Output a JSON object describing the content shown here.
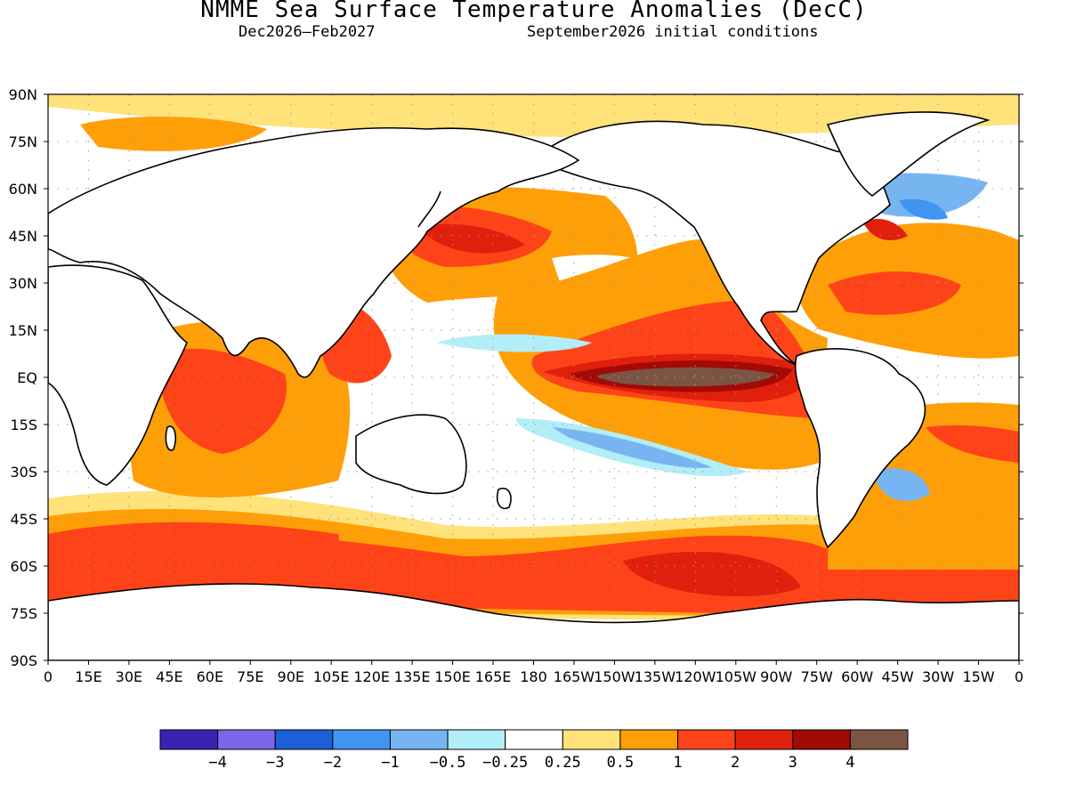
{
  "header": {
    "title": "NMME Sea Surface Temperature Anomalies (DecC)",
    "period": "Dec2026–Feb2027",
    "init": "September2026 initial conditions"
  },
  "map": {
    "lat_labels": [
      "90N",
      "75N",
      "60N",
      "45N",
      "30N",
      "15N",
      "EQ",
      "15S",
      "30S",
      "45S",
      "60S",
      "75S",
      "90S"
    ],
    "lon_labels": [
      "0",
      "15E",
      "30E",
      "45E",
      "60E",
      "75E",
      "90E",
      "105E",
      "120E",
      "135E",
      "150E",
      "165E",
      "180",
      "165W",
      "150W",
      "135W",
      "120W",
      "105W",
      "90W",
      "75W",
      "60W",
      "45W",
      "30W",
      "15W",
      "0"
    ],
    "lon_range": [
      0,
      360
    ],
    "lat_range": [
      -90,
      90
    ],
    "grid": "dotted, every 15 degrees"
  },
  "colorbar": {
    "colors": [
      "#3b22b5",
      "#7b68e8",
      "#1c5fd6",
      "#3f95f0",
      "#77b5f2",
      "#b2eef8",
      "#ffffff",
      "#ffe27a",
      "#ff9f08",
      "#ff4318",
      "#e11f0d",
      "#a20a05",
      "#7b5444"
    ],
    "labels": [
      "−4",
      "−3",
      "−2",
      "−1",
      "−0.5",
      "−0.25",
      "0.25",
      "0.5",
      "1",
      "2",
      "3",
      "4"
    ]
  }
}
